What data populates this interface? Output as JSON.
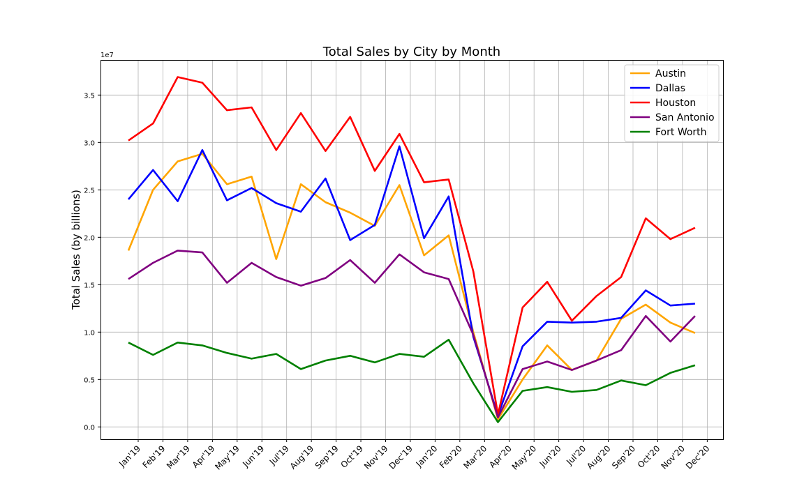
{
  "chart_data": {
    "type": "line",
    "title": "Total Sales by City by Month",
    "ylabel": "Total Sales (by billions)",
    "xlabel": "",
    "y_offset_label": "1e7",
    "ylim": [
      -0.13,
      3.87
    ],
    "y_ticks": [
      0.0,
      0.5,
      1.0,
      1.5,
      2.0,
      2.5,
      3.0,
      3.5
    ],
    "y_tick_labels": [
      "0.0",
      "0.5",
      "1.0",
      "1.5",
      "2.0",
      "2.5",
      "3.0",
      "3.5"
    ],
    "x_tick_labels": [
      "Jan'19",
      "Feb'19",
      "Mar'19",
      "Apr'19",
      "May'19",
      "Jun'19",
      "Jul'19",
      "Aug'19",
      "Sep'19",
      "Oct'19",
      "Nov'19",
      "Dec'19",
      "Jan'20",
      "Feb'20",
      "Mar'20",
      "Apr'20",
      "May'20",
      "Jun'20",
      "Jul'20",
      "Aug'20",
      "Sep'20",
      "Oct'20",
      "Nov'20",
      "Dec'20"
    ],
    "grid": true,
    "legend_position": "top-right",
    "series": [
      {
        "name": "Austin",
        "color": "#FFA500",
        "values": [
          1.86,
          2.5,
          2.8,
          2.88,
          2.56,
          2.64,
          1.77,
          2.56,
          2.37,
          2.26,
          2.12,
          2.55,
          1.81,
          2.02,
          1.0,
          0.08,
          0.5,
          0.86,
          0.6,
          0.7,
          1.14,
          1.29,
          1.1,
          0.99
        ]
      },
      {
        "name": "Dallas",
        "color": "#0000FF",
        "values": [
          2.4,
          2.71,
          2.38,
          2.92,
          2.39,
          2.52,
          2.36,
          2.27,
          2.62,
          1.97,
          2.13,
          2.96,
          1.99,
          2.43,
          0.95,
          0.12,
          0.85,
          1.11,
          1.1,
          1.11,
          1.15,
          1.44,
          1.28,
          1.3
        ]
      },
      {
        "name": "Houston",
        "color": "#FF0000",
        "values": [
          3.02,
          3.2,
          3.69,
          3.63,
          3.34,
          3.37,
          2.92,
          3.31,
          2.91,
          3.27,
          2.7,
          3.09,
          2.58,
          2.61,
          1.64,
          0.13,
          1.26,
          1.53,
          1.12,
          1.38,
          1.58,
          2.2,
          1.98,
          2.1
        ]
      },
      {
        "name": "San Antonio",
        "color": "#800080",
        "values": [
          1.56,
          1.73,
          1.86,
          1.84,
          1.52,
          1.73,
          1.58,
          1.49,
          1.57,
          1.76,
          1.52,
          1.82,
          1.63,
          1.56,
          0.97,
          0.1,
          0.61,
          0.69,
          0.6,
          0.7,
          0.81,
          1.17,
          0.9,
          1.17
        ]
      },
      {
        "name": "Fort Worth",
        "color": "#008000",
        "values": [
          0.89,
          0.76,
          0.89,
          0.86,
          0.78,
          0.72,
          0.77,
          0.61,
          0.7,
          0.75,
          0.68,
          0.77,
          0.74,
          0.92,
          0.46,
          0.05,
          0.38,
          0.42,
          0.37,
          0.39,
          0.49,
          0.44,
          0.57,
          0.65
        ]
      }
    ]
  }
}
